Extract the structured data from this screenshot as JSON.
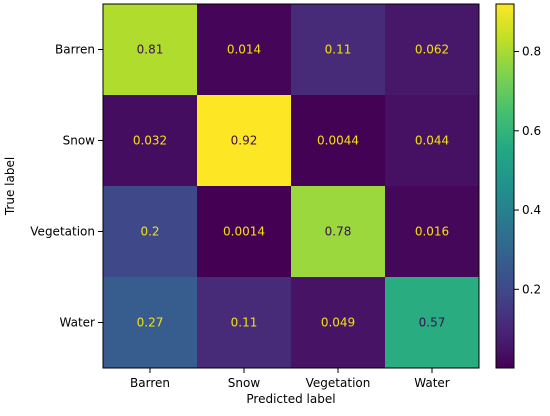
{
  "chart_data": {
    "type": "heatmap",
    "title": "",
    "xlabel": "Predicted label",
    "ylabel": "True label",
    "x_categories": [
      "Barren",
      "Snow",
      "Vegetation",
      "Water"
    ],
    "y_categories": [
      "Barren",
      "Snow",
      "Vegetation",
      "Water"
    ],
    "matrix": [
      [
        0.81,
        0.014,
        0.11,
        0.062
      ],
      [
        0.032,
        0.92,
        0.0044,
        0.044
      ],
      [
        0.2,
        0.0014,
        0.78,
        0.016
      ],
      [
        0.27,
        0.11,
        0.049,
        0.57
      ]
    ],
    "cell_labels": [
      [
        "0.81",
        "0.014",
        "0.11",
        "0.062"
      ],
      [
        "0.032",
        "0.92",
        "0.0044",
        "0.044"
      ],
      [
        "0.2",
        "0.0014",
        "0.78",
        "0.016"
      ],
      [
        "0.27",
        "0.11",
        "0.049",
        "0.57"
      ]
    ],
    "colormap": "viridis",
    "colorbar": {
      "vmin": 0.0014,
      "vmax": 0.92,
      "ticks": [
        0.2,
        0.4,
        0.6,
        0.8
      ],
      "tick_labels": [
        "0.2",
        "0.4",
        "0.6",
        "0.8"
      ]
    },
    "grid": false
  }
}
